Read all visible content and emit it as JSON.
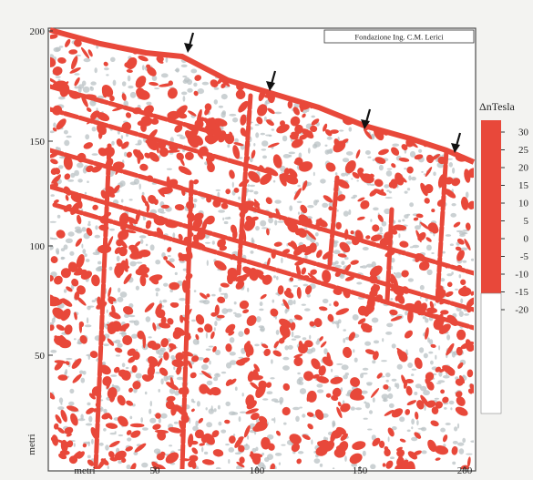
{
  "credit": "Fondazione Ing. C.M. Lerici",
  "colorbar": {
    "title": "ΔnTesla",
    "ticks": [
      "30",
      "25",
      "20",
      "15",
      "10",
      "5",
      "0",
      "-5",
      "-10",
      "-15",
      "-20"
    ],
    "positive_color": "#e8483a",
    "negative_color": "#ffffff"
  },
  "axes": {
    "x_label": "metri",
    "y_label": "metri",
    "x_ticks": [
      "50",
      "100",
      "150",
      "200"
    ],
    "y_ticks": [
      "200",
      "150",
      "100",
      "50"
    ]
  },
  "colors": {
    "anomaly": "#e8483a",
    "noise": "#b9c1c4",
    "background": "#ffffff",
    "frame": "#4a4a4a"
  },
  "arrows": {
    "count": 4,
    "color": "#111111",
    "meaning": "linear features"
  }
}
